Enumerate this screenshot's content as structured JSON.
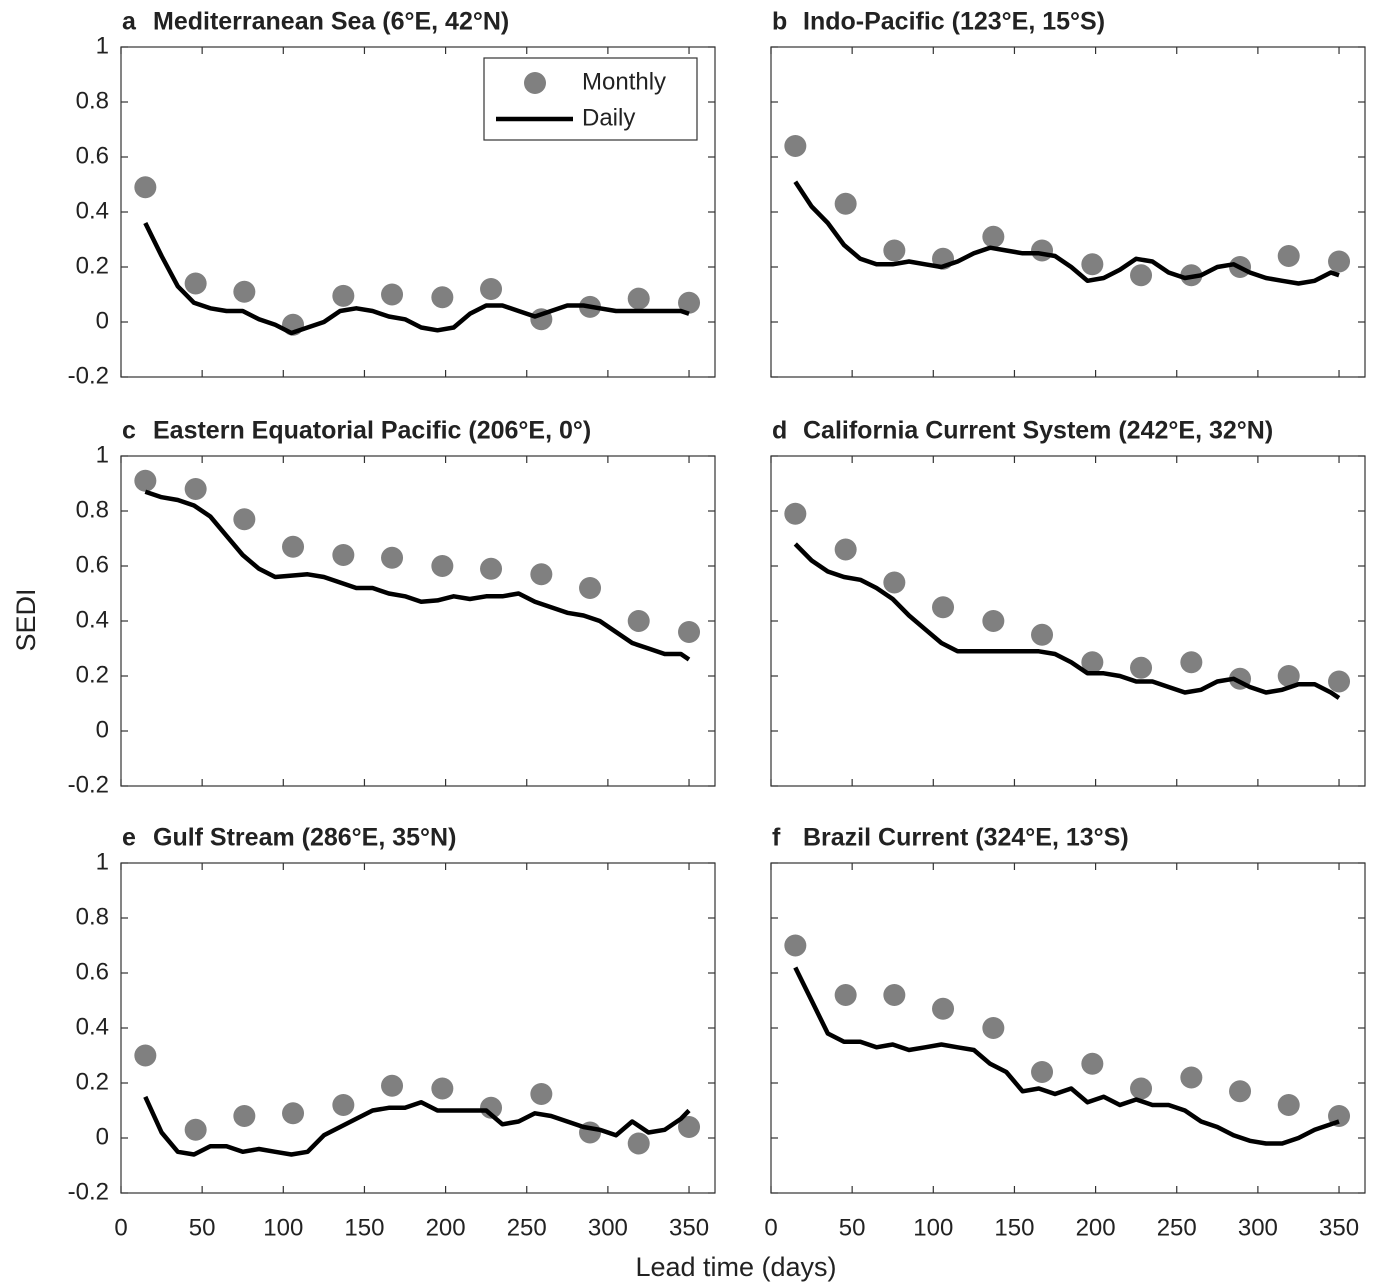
{
  "chart_data": [
    {
      "type": "scatter-line",
      "panel_label": "a",
      "title": "Mediterranean Sea (6°E, 42°N)",
      "xlim": [
        0,
        366
      ],
      "ylim": [
        -0.2,
        1
      ],
      "xticks": [
        0,
        50,
        100,
        150,
        200,
        250,
        300,
        350
      ],
      "yticks": [
        -0.2,
        0,
        0.2,
        0.4,
        0.6,
        0.8,
        1
      ],
      "legend": "upper right",
      "series": [
        {
          "name": "Monthly",
          "kind": "marker",
          "color": "#808080",
          "x": [
            15,
            46,
            76,
            106,
            137,
            167,
            198,
            228,
            259,
            289,
            319,
            350
          ],
          "values": [
            0.49,
            0.14,
            0.11,
            -0.01,
            0.095,
            0.1,
            0.09,
            0.12,
            0.01,
            0.055,
            0.085,
            0.07
          ]
        },
        {
          "name": "Daily",
          "kind": "line",
          "color": "#000000",
          "x": [
            15,
            25,
            35,
            45,
            55,
            65,
            75,
            85,
            95,
            105,
            115,
            125,
            135,
            145,
            155,
            165,
            175,
            185,
            195,
            205,
            215,
            225,
            235,
            245,
            255,
            265,
            275,
            285,
            295,
            305,
            315,
            325,
            335,
            345,
            350
          ],
          "values": [
            0.36,
            0.24,
            0.13,
            0.07,
            0.05,
            0.04,
            0.04,
            0.01,
            -0.01,
            -0.04,
            -0.02,
            0,
            0.04,
            0.05,
            0.04,
            0.02,
            0.01,
            -0.02,
            -0.03,
            -0.02,
            0.03,
            0.06,
            0.06,
            0.04,
            0.02,
            0.04,
            0.06,
            0.06,
            0.05,
            0.04,
            0.04,
            0.04,
            0.04,
            0.04,
            0.03
          ]
        }
      ]
    },
    {
      "type": "scatter-line",
      "panel_label": "b",
      "title": "Indo-Pacific (123°E, 15°S)",
      "xlim": [
        0,
        366
      ],
      "ylim": [
        -0.2,
        1
      ],
      "xticks": [
        0,
        50,
        100,
        150,
        200,
        250,
        300,
        350
      ],
      "yticks": [
        -0.2,
        0,
        0.2,
        0.4,
        0.6,
        0.8,
        1
      ],
      "series": [
        {
          "kind": "marker",
          "color": "#808080",
          "x": [
            15,
            46,
            76,
            106,
            137,
            167,
            198,
            228,
            259,
            289,
            319,
            350
          ],
          "values": [
            0.64,
            0.43,
            0.26,
            0.23,
            0.31,
            0.26,
            0.21,
            0.17,
            0.17,
            0.2,
            0.24,
            0.22
          ]
        },
        {
          "kind": "line",
          "color": "#000000",
          "x": [
            15,
            25,
            35,
            45,
            55,
            65,
            75,
            85,
            95,
            105,
            115,
            125,
            135,
            145,
            155,
            165,
            175,
            185,
            195,
            205,
            215,
            225,
            235,
            245,
            255,
            265,
            275,
            285,
            295,
            305,
            315,
            325,
            335,
            345,
            350
          ],
          "values": [
            0.51,
            0.42,
            0.36,
            0.28,
            0.23,
            0.21,
            0.21,
            0.22,
            0.21,
            0.2,
            0.22,
            0.25,
            0.27,
            0.26,
            0.25,
            0.25,
            0.24,
            0.2,
            0.15,
            0.16,
            0.19,
            0.23,
            0.22,
            0.18,
            0.16,
            0.17,
            0.2,
            0.21,
            0.18,
            0.16,
            0.15,
            0.14,
            0.15,
            0.18,
            0.17
          ]
        }
      ]
    },
    {
      "type": "scatter-line",
      "panel_label": "c",
      "title": "Eastern Equatorial Pacific (206°E, 0°)",
      "xlim": [
        0,
        366
      ],
      "ylim": [
        -0.2,
        1
      ],
      "xticks": [
        0,
        50,
        100,
        150,
        200,
        250,
        300,
        350
      ],
      "yticks": [
        -0.2,
        0,
        0.2,
        0.4,
        0.6,
        0.8,
        1
      ],
      "series": [
        {
          "kind": "marker",
          "color": "#808080",
          "x": [
            15,
            46,
            76,
            106,
            137,
            167,
            198,
            228,
            259,
            289,
            319,
            350
          ],
          "values": [
            0.91,
            0.88,
            0.77,
            0.67,
            0.64,
            0.63,
            0.6,
            0.59,
            0.57,
            0.52,
            0.4,
            0.36
          ]
        },
        {
          "kind": "line",
          "color": "#000000",
          "x": [
            15,
            25,
            35,
            45,
            55,
            65,
            75,
            85,
            95,
            105,
            115,
            125,
            135,
            145,
            155,
            165,
            175,
            185,
            195,
            205,
            215,
            225,
            235,
            245,
            255,
            265,
            275,
            285,
            295,
            305,
            315,
            325,
            335,
            345,
            350
          ],
          "values": [
            0.87,
            0.85,
            0.84,
            0.82,
            0.78,
            0.71,
            0.64,
            0.59,
            0.56,
            0.565,
            0.57,
            0.56,
            0.54,
            0.52,
            0.52,
            0.5,
            0.49,
            0.47,
            0.475,
            0.49,
            0.48,
            0.49,
            0.49,
            0.5,
            0.47,
            0.45,
            0.43,
            0.42,
            0.4,
            0.36,
            0.32,
            0.3,
            0.28,
            0.28,
            0.26
          ]
        }
      ]
    },
    {
      "type": "scatter-line",
      "panel_label": "d",
      "title": "California Current System (242°E, 32°N)",
      "xlim": [
        0,
        366
      ],
      "ylim": [
        -0.2,
        1
      ],
      "xticks": [
        0,
        50,
        100,
        150,
        200,
        250,
        300,
        350
      ],
      "yticks": [
        -0.2,
        0,
        0.2,
        0.4,
        0.6,
        0.8,
        1
      ],
      "series": [
        {
          "kind": "marker",
          "color": "#808080",
          "x": [
            15,
            46,
            76,
            106,
            137,
            167,
            198,
            228,
            259,
            289,
            319,
            350
          ],
          "values": [
            0.79,
            0.66,
            0.54,
            0.45,
            0.4,
            0.35,
            0.25,
            0.23,
            0.25,
            0.19,
            0.2,
            0.18
          ]
        },
        {
          "kind": "line",
          "color": "#000000",
          "x": [
            15,
            25,
            35,
            45,
            55,
            65,
            75,
            85,
            95,
            105,
            115,
            125,
            135,
            145,
            155,
            165,
            175,
            185,
            195,
            205,
            215,
            225,
            235,
            245,
            255,
            265,
            275,
            285,
            295,
            305,
            315,
            325,
            335,
            345,
            350
          ],
          "values": [
            0.68,
            0.62,
            0.58,
            0.56,
            0.55,
            0.52,
            0.48,
            0.42,
            0.37,
            0.32,
            0.29,
            0.29,
            0.29,
            0.29,
            0.29,
            0.29,
            0.28,
            0.25,
            0.21,
            0.21,
            0.2,
            0.18,
            0.18,
            0.16,
            0.14,
            0.15,
            0.18,
            0.19,
            0.16,
            0.14,
            0.15,
            0.17,
            0.17,
            0.14,
            0.12
          ]
        }
      ]
    },
    {
      "type": "scatter-line",
      "panel_label": "e",
      "title": "Gulf Stream (286°E, 35°N)",
      "xlim": [
        0,
        366
      ],
      "ylim": [
        -0.2,
        1
      ],
      "xticks": [
        0,
        50,
        100,
        150,
        200,
        250,
        300,
        350
      ],
      "yticks": [
        -0.2,
        0,
        0.2,
        0.4,
        0.6,
        0.8,
        1
      ],
      "series": [
        {
          "kind": "marker",
          "color": "#808080",
          "x": [
            15,
            46,
            76,
            106,
            137,
            167,
            198,
            228,
            259,
            289,
            319,
            350
          ],
          "values": [
            0.3,
            0.03,
            0.08,
            0.09,
            0.12,
            0.19,
            0.18,
            0.11,
            0.16,
            0.02,
            -0.02,
            0.04
          ]
        },
        {
          "kind": "line",
          "color": "#000000",
          "x": [
            15,
            25,
            35,
            45,
            55,
            65,
            75,
            85,
            95,
            105,
            115,
            125,
            135,
            145,
            155,
            165,
            175,
            185,
            195,
            205,
            215,
            225,
            235,
            245,
            255,
            265,
            275,
            285,
            295,
            305,
            315,
            325,
            335,
            345,
            350
          ],
          "values": [
            0.15,
            0.02,
            -0.05,
            -0.06,
            -0.03,
            -0.03,
            -0.05,
            -0.04,
            -0.05,
            -0.06,
            -0.05,
            0.01,
            0.04,
            0.07,
            0.1,
            0.11,
            0.11,
            0.13,
            0.1,
            0.1,
            0.1,
            0.1,
            0.05,
            0.06,
            0.09,
            0.08,
            0.06,
            0.04,
            0.03,
            0.01,
            0.06,
            0.02,
            0.03,
            0.07,
            0.1
          ]
        }
      ]
    },
    {
      "type": "scatter-line",
      "panel_label": "f",
      "title": "Brazil Current (324°E, 13°S)",
      "xlim": [
        0,
        366
      ],
      "ylim": [
        -0.2,
        1
      ],
      "xticks": [
        0,
        50,
        100,
        150,
        200,
        250,
        300,
        350
      ],
      "yticks": [
        -0.2,
        0,
        0.2,
        0.4,
        0.6,
        0.8,
        1
      ],
      "series": [
        {
          "kind": "marker",
          "color": "#808080",
          "x": [
            15,
            46,
            76,
            106,
            137,
            167,
            198,
            228,
            259,
            289,
            319,
            350
          ],
          "values": [
            0.7,
            0.52,
            0.52,
            0.47,
            0.4,
            0.24,
            0.27,
            0.18,
            0.22,
            0.17,
            0.12,
            0.08
          ]
        },
        {
          "kind": "line",
          "color": "#000000",
          "x": [
            15,
            25,
            35,
            45,
            55,
            65,
            75,
            85,
            95,
            105,
            115,
            125,
            135,
            145,
            155,
            165,
            175,
            185,
            195,
            205,
            215,
            225,
            235,
            245,
            255,
            265,
            275,
            285,
            295,
            305,
            315,
            325,
            335,
            345,
            350
          ],
          "values": [
            0.62,
            0.5,
            0.38,
            0.35,
            0.35,
            0.33,
            0.34,
            0.32,
            0.33,
            0.34,
            0.33,
            0.32,
            0.27,
            0.24,
            0.17,
            0.18,
            0.16,
            0.18,
            0.13,
            0.15,
            0.12,
            0.14,
            0.12,
            0.12,
            0.1,
            0.06,
            0.04,
            0.01,
            -0.01,
            -0.02,
            -0.02,
            0,
            0.03,
            0.05,
            0.06
          ]
        }
      ]
    }
  ],
  "shared": {
    "ylabel": "SEDI",
    "xlabel": "Lead time (days)"
  }
}
